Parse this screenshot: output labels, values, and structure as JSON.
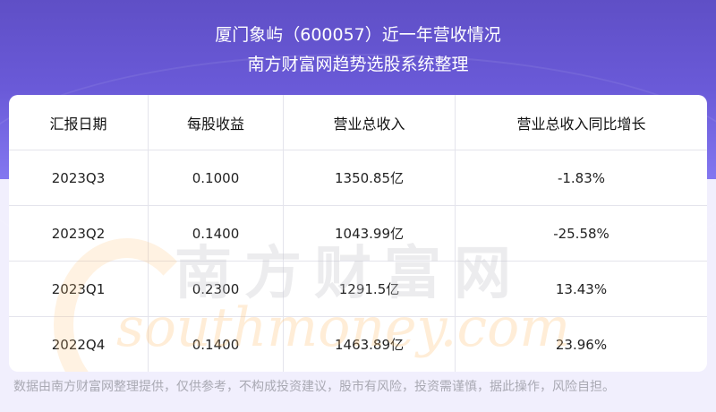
{
  "header": {
    "title": "厦门象屿（600057）近一年营收情况",
    "subtitle": "南方财富网趋势选股系统整理"
  },
  "table": {
    "columns": [
      "汇报日期",
      "每股收益",
      "营业总收入",
      "营业总收入同比增长"
    ],
    "rows": [
      [
        "2023Q3",
        "0.1000",
        "1350.85亿",
        "-1.83%"
      ],
      [
        "2023Q2",
        "0.1400",
        "1043.99亿",
        "-25.58%"
      ],
      [
        "2023Q1",
        "0.2300",
        "1291.5亿",
        "13.43%"
      ],
      [
        "2022Q4",
        "0.1400",
        "1463.89亿",
        "23.96%"
      ]
    ]
  },
  "watermark": {
    "cn": "南方财富网",
    "en": "southmoney.com"
  },
  "footer": {
    "disclaimer": "数据由南方财富网整理提供，仅供参考，不构成投资建议，股市有风险，投资需谨慎，据此操作，风险自担。"
  },
  "colors": {
    "banner": "#6a5ad8",
    "background": "#f1effd"
  }
}
